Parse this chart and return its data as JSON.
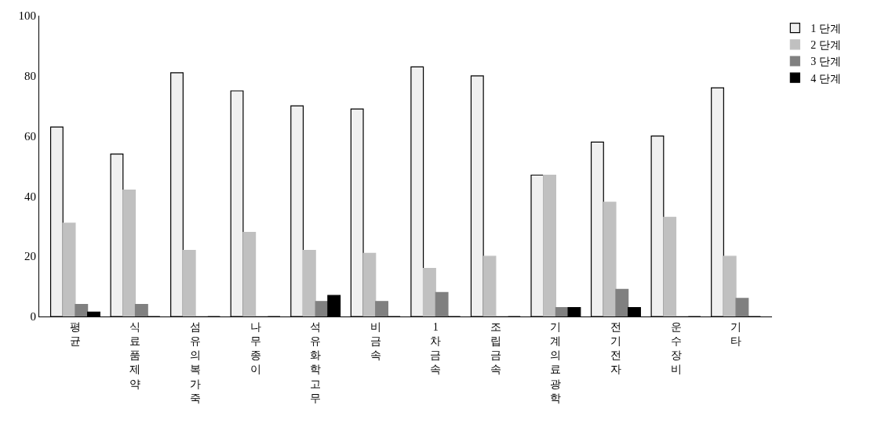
{
  "chart_data": {
    "type": "bar",
    "categories": [
      "평균",
      "식료품제약",
      "섬유의복가죽",
      "나무종이",
      "석유화학고무",
      "비금속",
      "1차금속",
      "조립금속",
      "기계의료광학",
      "전기전자",
      "운수장비",
      "기타"
    ],
    "series": [
      {
        "name": "1 단계",
        "color": "#f0f0f0",
        "values": [
          63,
          54,
          81,
          75,
          70,
          69,
          83,
          80,
          47,
          58,
          60,
          76
        ]
      },
      {
        "name": "2 단계",
        "color": "#c0c0c0",
        "values": [
          31,
          42,
          22,
          28,
          22,
          21,
          16,
          20,
          47,
          38,
          33,
          20
        ]
      },
      {
        "name": "3 단계",
        "color": "#808080",
        "values": [
          4,
          4,
          0,
          0,
          5,
          5,
          8,
          0,
          3,
          9,
          0,
          6
        ]
      },
      {
        "name": "4 단계",
        "color": "#000000",
        "values": [
          1.5,
          0,
          0,
          0,
          7,
          0,
          0,
          0,
          3,
          3,
          0,
          0
        ]
      }
    ],
    "ylim": [
      0,
      100
    ],
    "yticks": [
      0,
      20,
      40,
      60,
      80,
      100
    ],
    "grid": false,
    "legend": "top right"
  }
}
